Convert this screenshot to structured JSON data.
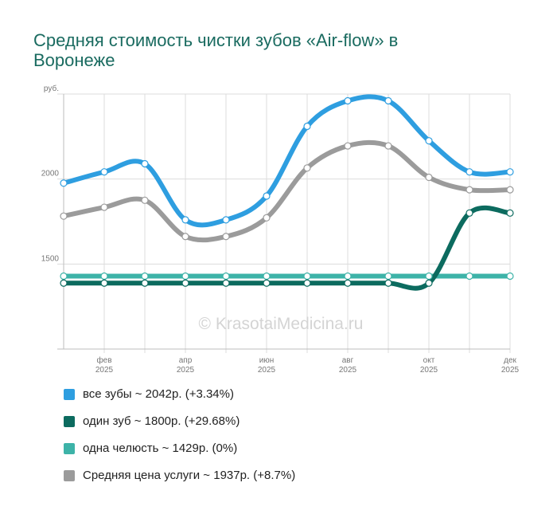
{
  "title": "Средняя стоимость чистки зубов «Air-flow» в Воронеже",
  "watermark": "© KrasotaiMedicina.ru",
  "chart_data": {
    "type": "line",
    "title": "Средняя стоимость чистки зубов «Air-flow» в Воронеже",
    "ylabel": "руб.",
    "ylim": [
      1000,
      2500
    ],
    "yticks": [
      {
        "value": 2500,
        "label": "руб."
      },
      {
        "value": 2000,
        "label": "2000"
      },
      {
        "value": 1500,
        "label": "1500"
      }
    ],
    "x": [
      "2025-01",
      "2025-02",
      "2025-03",
      "2025-04",
      "2025-05",
      "2025-06",
      "2025-07",
      "2025-08",
      "2025-09",
      "2025-10",
      "2025-11",
      "2025-12"
    ],
    "xticks": [
      {
        "index": 1,
        "month": "фев",
        "year": "2025"
      },
      {
        "index": 3,
        "month": "апр",
        "year": "2025"
      },
      {
        "index": 5,
        "month": "июн",
        "year": "2025"
      },
      {
        "index": 7,
        "month": "авг",
        "year": "2025"
      },
      {
        "index": 9,
        "month": "окт",
        "year": "2025"
      },
      {
        "index": 11,
        "month": "дек",
        "year": "2025"
      }
    ],
    "grid": true,
    "legend_position": "bottom",
    "series": [
      {
        "name": "все зубы",
        "legend": "все зубы ~ 2042р. (+3.34%)",
        "color": "#2e9ee0",
        "values": [
          1976,
          2042,
          2090,
          1760,
          1760,
          1900,
          2310,
          2460,
          2460,
          2225,
          2042,
          2042
        ]
      },
      {
        "name": "один зуб",
        "legend": "один зуб ~ 1800р. (+29.68%)",
        "color": "#0c6b5f",
        "values": [
          1388,
          1388,
          1388,
          1388,
          1388,
          1388,
          1388,
          1388,
          1388,
          1388,
          1800,
          1800
        ]
      },
      {
        "name": "одна челюсть",
        "legend": "одна челюсть ~ 1429р. (0%)",
        "color": "#3db3a8",
        "values": [
          1429,
          1429,
          1429,
          1429,
          1429,
          1429,
          1429,
          1429,
          1429,
          1429,
          1429,
          1429
        ]
      },
      {
        "name": "Средняя цена услуги",
        "legend": "Средняя цена услуги ~ 1937р. (+8.7%)",
        "color": "#9b9b9b",
        "values": [
          1782,
          1834,
          1875,
          1662,
          1662,
          1772,
          2065,
          2195,
          2195,
          2010,
          1937,
          1937
        ]
      }
    ]
  }
}
